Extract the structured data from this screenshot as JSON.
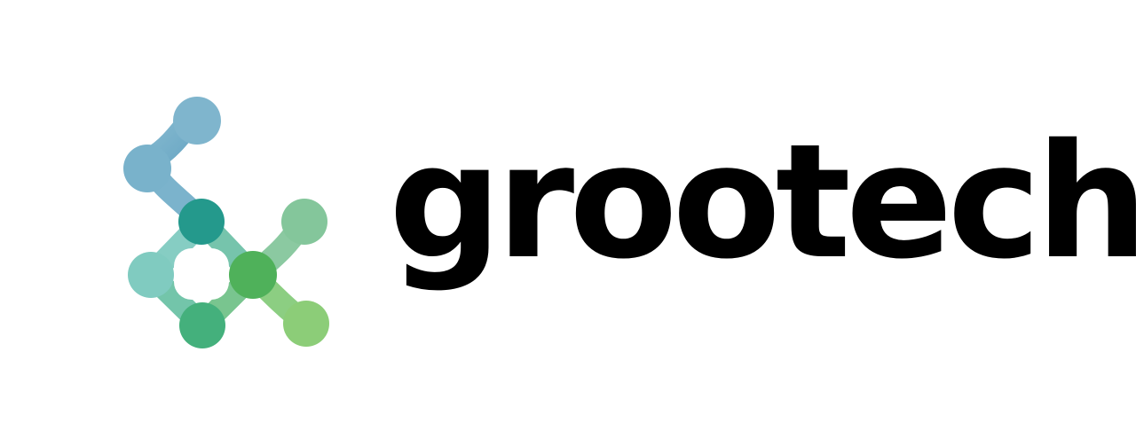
{
  "brand": {
    "name": "grootech",
    "text_color": "#000000",
    "background_color": "#ffffff"
  },
  "logo": {
    "icon": "molecule-network-icon",
    "colors": {
      "blue": "#7bb3cc",
      "teal_light": "#7ccbc0",
      "teal_dark": "#24998c",
      "green_light": "#82c79a",
      "green_mid": "#4fb15a",
      "green_dark": "#44b07c",
      "lime": "#8ccd78"
    }
  }
}
